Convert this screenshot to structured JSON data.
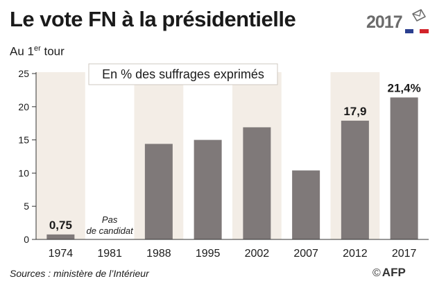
{
  "header": {
    "title": "Le vote FN à la présidentielle",
    "subtitle_main": "Au 1",
    "subtitle_sup": "er",
    "subtitle_rest": " tour"
  },
  "logo": {
    "year": "2017",
    "colors": {
      "blue": "#2b3f8f",
      "white": "#ffffff",
      "red": "#d2232a"
    },
    "icon": "ballot-envelope-icon"
  },
  "chart_data": {
    "type": "bar",
    "categories": [
      "1974",
      "1981",
      "1988",
      "1995",
      "2002",
      "2007",
      "2012",
      "2017"
    ],
    "values": [
      0.75,
      null,
      14.4,
      15.0,
      16.9,
      10.4,
      17.9,
      21.4
    ],
    "data_labels": [
      "0,75",
      "",
      "",
      "",
      "",
      "",
      "17,9",
      "21,4%"
    ],
    "notes": {
      "1981": [
        "Pas",
        "de candidat"
      ]
    },
    "y_ticks": [
      0,
      5,
      10,
      15,
      20,
      25
    ],
    "ylim": [
      0,
      25
    ],
    "annotation": "En % des suffrages exprimés",
    "alternate_band_color": "#f3ede6",
    "bar_color": "#7f7979",
    "grid": false
  },
  "footer": {
    "source": "Sources : ministère de l’Intérieur",
    "copyright": "©",
    "agency": "AFP"
  }
}
